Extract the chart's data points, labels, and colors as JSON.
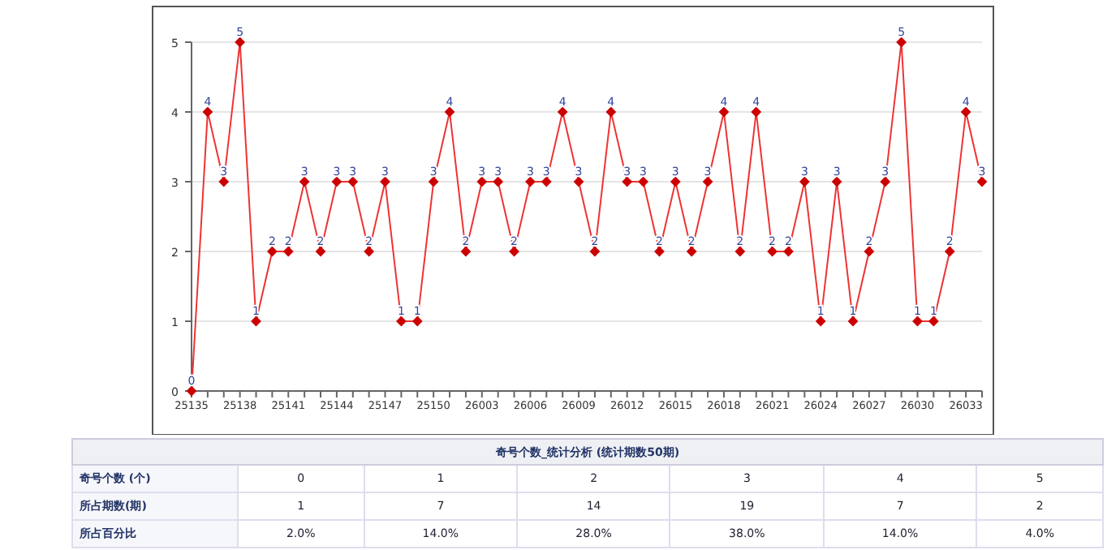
{
  "chart_data": [
    {
      "type": "line",
      "categories": [
        "25135",
        null,
        null,
        "25138",
        null,
        null,
        "25141",
        null,
        null,
        "25144",
        null,
        null,
        "25147",
        null,
        null,
        "25150",
        null,
        null,
        "26003",
        null,
        null,
        "26006",
        null,
        null,
        "26009",
        null,
        null,
        "26012",
        null,
        null,
        "26015",
        null,
        null,
        "26018",
        null,
        null,
        "26021",
        null,
        null,
        "26024",
        null,
        null,
        "26027",
        null,
        null,
        "26030",
        null,
        null,
        "26033",
        null
      ],
      "series": [
        {
          "color": "#ee3333",
          "values": [
            0,
            4,
            3,
            5,
            1,
            2,
            2,
            3,
            2,
            3,
            3,
            2,
            3,
            1,
            1,
            3,
            4,
            2,
            3,
            3,
            2,
            3,
            3,
            4,
            3,
            2,
            4,
            3,
            3,
            2,
            3,
            2,
            3,
            4,
            2,
            4,
            2,
            2,
            3,
            1,
            3,
            1,
            2,
            3,
            5,
            1,
            1,
            2,
            4,
            3
          ]
        }
      ],
      "ylim": [
        0,
        5
      ],
      "yticks": [
        0,
        1,
        2,
        3,
        4,
        5
      ],
      "grid": "y",
      "marker": "diamond",
      "data_labels": true
    },
    {
      "type": "other",
      "title": "奇号个数_统计分析 (统计期数50期)",
      "annotations": [
        "奇号个数 (个)",
        "0",
        "1",
        "2",
        "3",
        "4",
        "5",
        "所占期数(期)",
        "1",
        "7",
        "14",
        "19",
        "7",
        "2",
        "所占百分比",
        "2.0%",
        "14.0%",
        "28.0%",
        "38.0%",
        "14.0%",
        "4.0%"
      ]
    }
  ]
}
